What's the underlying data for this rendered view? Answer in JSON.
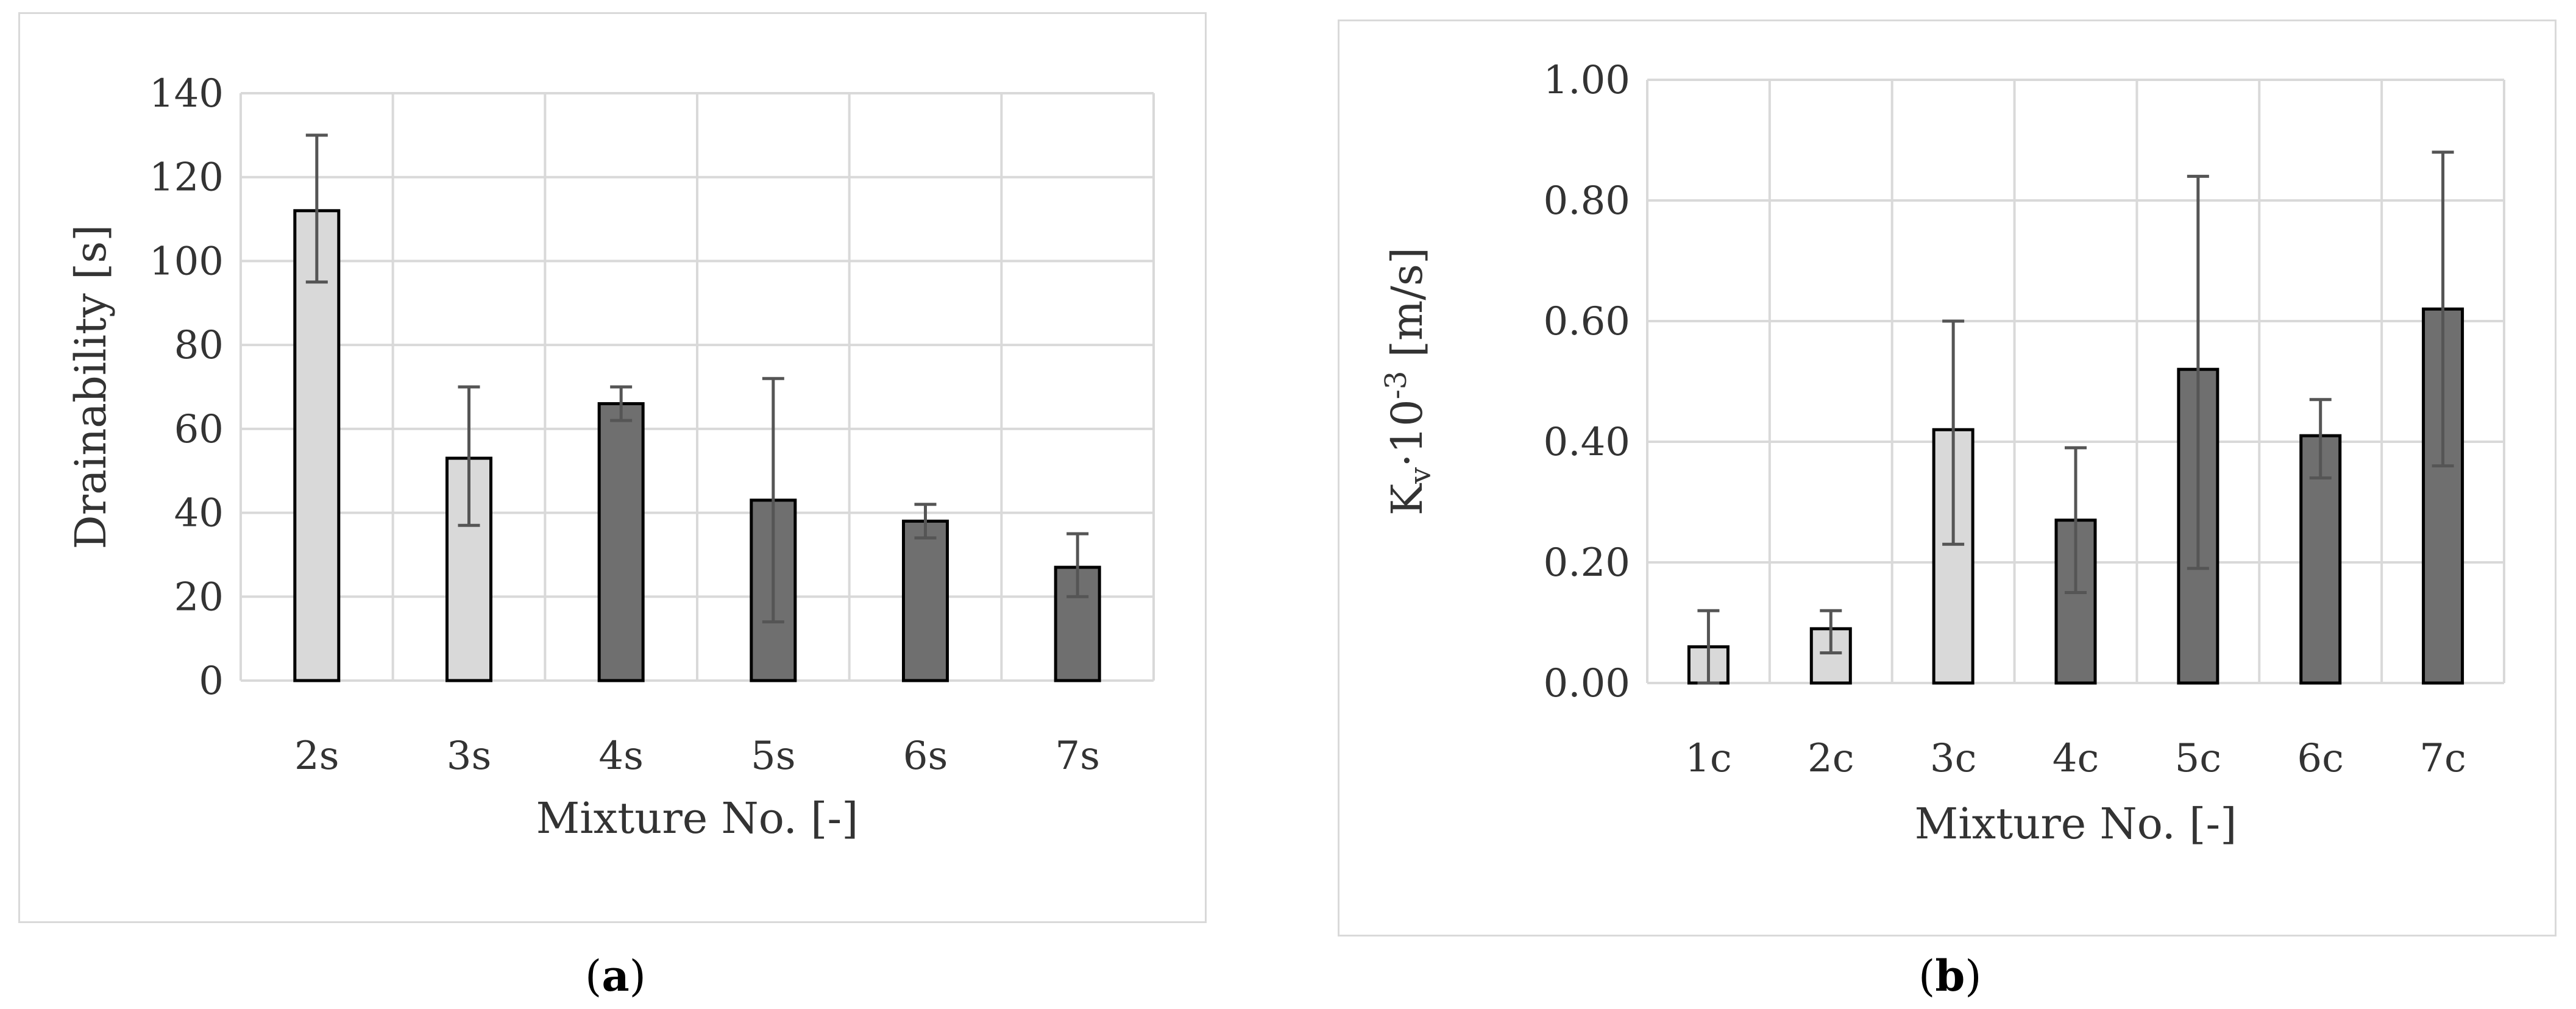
{
  "chart_data": [
    {
      "type": "bar",
      "panel_caption": "a",
      "categories": [
        "2s",
        "3s",
        "4s",
        "5s",
        "6s",
        "7s"
      ],
      "values": [
        112,
        53,
        66,
        43,
        38,
        27
      ],
      "error_low": [
        95,
        37,
        62,
        14,
        34,
        20
      ],
      "error_high": [
        130,
        70,
        70,
        72,
        42,
        35
      ],
      "bar_colors": [
        "#d9d9d9",
        "#d9d9d9",
        "#6f6f6f",
        "#6f6f6f",
        "#6f6f6f",
        "#6f6f6f"
      ],
      "xlabel": "Mixture No. [-]",
      "ylabel": "Drainability [s]",
      "ylim": [
        0,
        140
      ],
      "yticks": [
        "0",
        "20",
        "40",
        "60",
        "80",
        "100",
        "120",
        "140"
      ],
      "grid": true
    },
    {
      "type": "bar",
      "panel_caption": "b",
      "categories": [
        "1c",
        "2c",
        "3c",
        "4c",
        "5c",
        "6c",
        "7c"
      ],
      "values": [
        0.06,
        0.09,
        0.42,
        0.27,
        0.52,
        0.41,
        0.62
      ],
      "error_low": [
        0.0,
        0.05,
        0.23,
        0.15,
        0.19,
        0.34,
        0.36
      ],
      "error_high": [
        0.12,
        0.12,
        0.6,
        0.39,
        0.84,
        0.47,
        0.88
      ],
      "bar_colors": [
        "#d9d9d9",
        "#d9d9d9",
        "#d9d9d9",
        "#6f6f6f",
        "#6f6f6f",
        "#6f6f6f",
        "#6f6f6f"
      ],
      "xlabel": "Mixture No. [-]",
      "ylabel_main": "K",
      "ylabel_sub": "v",
      "ylabel_mid": "·10",
      "ylabel_sup": "-3",
      "ylabel_unit": " [m/s]",
      "ylim": [
        0,
        1.0
      ],
      "yticks": [
        "0.00",
        "0.20",
        "0.40",
        "0.60",
        "0.80",
        "1.00"
      ],
      "grid": true
    }
  ]
}
